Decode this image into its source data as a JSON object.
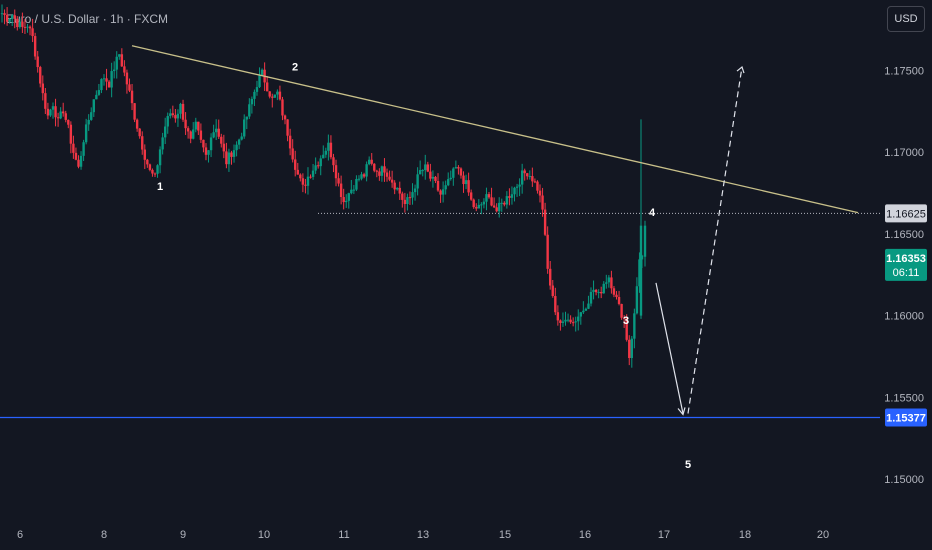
{
  "header": {
    "symbol_title": "Euro / U.S. Dollar · 1h · FXCM",
    "currency": "USD"
  },
  "colors": {
    "background": "#131722",
    "up": "#089981",
    "down": "#f23645",
    "trendline": "#c8c08a",
    "support_line": "#2962ff",
    "last_price_tag": "#089981"
  },
  "chart_data": {
    "type": "candlestick",
    "x_tick_labels": [
      "6",
      "8",
      "9",
      "10",
      "11",
      "13",
      "15",
      "16",
      "17",
      "18",
      "20"
    ],
    "y_tick_labels": [
      "1.17500",
      "1.17000",
      "1.16500",
      "1.16000",
      "1.15500",
      "1.15000"
    ],
    "y_ticks": [
      1.175,
      1.17,
      1.165,
      1.16,
      1.155,
      1.15
    ],
    "ylim": [
      1.1475,
      1.1793
    ],
    "price_tags": {
      "level_4": "1.16625",
      "current_price": "1.16353",
      "countdown": "06:11",
      "target": "1.15377"
    },
    "levels": {
      "level_4": 1.16625,
      "target": 1.15377
    },
    "wave_labels": [
      "1",
      "2",
      "3",
      "4",
      "5"
    ],
    "wave_points": [
      {
        "label": "1",
        "price": 1.1683
      },
      {
        "label": "2",
        "price": 1.1745
      },
      {
        "label": "3",
        "price": 1.1598
      },
      {
        "label": "4",
        "price": 1.1662
      },
      {
        "label": "5",
        "price": 1.1525
      }
    ],
    "trendline": {
      "start_price": 1.1765,
      "end_price": 1.1663
    },
    "projection": {
      "drop_to": 1.15377,
      "rise_to": 1.1752
    },
    "price_path": [
      1.1785,
      1.1782,
      1.1784,
      1.1779,
      1.1776,
      1.1778,
      1.177,
      1.1752,
      1.1735,
      1.1722,
      1.173,
      1.1718,
      1.1726,
      1.1714,
      1.17,
      1.169,
      1.1708,
      1.172,
      1.1732,
      1.174,
      1.1746,
      1.1742,
      1.1752,
      1.176,
      1.1748,
      1.1736,
      1.1722,
      1.171,
      1.1698,
      1.1688,
      1.1684,
      1.1702,
      1.1716,
      1.1724,
      1.1722,
      1.1728,
      1.1716,
      1.1706,
      1.1716,
      1.1706,
      1.1698,
      1.171,
      1.1716,
      1.1704,
      1.1694,
      1.17,
      1.1704,
      1.1712,
      1.1722,
      1.1732,
      1.1742,
      1.1748,
      1.174,
      1.1732,
      1.1736,
      1.1724,
      1.1712,
      1.1698,
      1.1686,
      1.1678,
      1.1685,
      1.169,
      1.1694,
      1.17,
      1.1704,
      1.1694,
      1.168,
      1.167,
      1.1675,
      1.168,
      1.1684,
      1.1686,
      1.1694,
      1.169,
      1.1688,
      1.169,
      1.1685,
      1.168,
      1.1675,
      1.1668,
      1.1672,
      1.168,
      1.1688,
      1.169,
      1.1684,
      1.168,
      1.1674,
      1.1678,
      1.1684,
      1.169,
      1.1686,
      1.168,
      1.167,
      1.1664,
      1.1668,
      1.1672,
      1.167,
      1.1664,
      1.1668,
      1.1672,
      1.1676,
      1.168,
      1.1686,
      1.1688,
      1.1684,
      1.1678,
      1.1666,
      1.1628,
      1.161,
      1.1598,
      1.1594,
      1.16,
      1.1596,
      1.16,
      1.1604,
      1.161,
      1.1616,
      1.1612,
      1.162,
      1.1624,
      1.1615,
      1.1605,
      1.1598,
      1.1575,
      1.16,
      1.1636
    ]
  }
}
